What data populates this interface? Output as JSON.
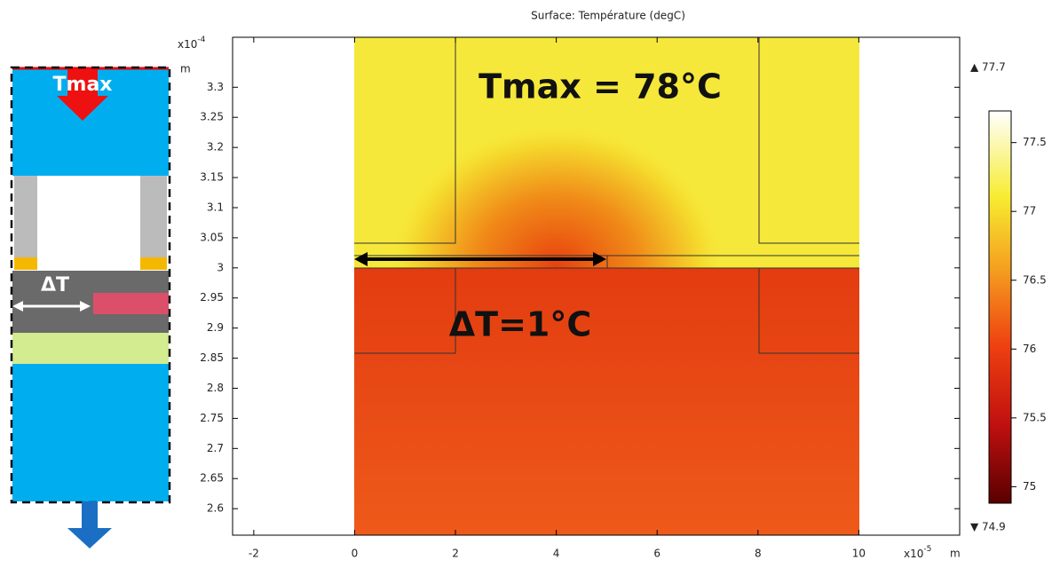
{
  "chart_data": {
    "type": "surface",
    "title": "Surface: Température (degC)",
    "x_unit": "m",
    "x_multiplier": "x10",
    "x_exponent": "-5",
    "y_unit": "m",
    "y_multiplier": "x10",
    "y_exponent": "-4",
    "xlim": [
      -2.42,
      12
    ],
    "xticks": [
      -2,
      0,
      2,
      4,
      6,
      8,
      10
    ],
    "ylim": [
      2.556,
      3.383
    ],
    "yticks": [
      2.6,
      2.65,
      2.7,
      2.75,
      2.8,
      2.85,
      2.9,
      2.95,
      3,
      3.05,
      3.1,
      3.15,
      3.2,
      3.25,
      3.3
    ],
    "clim": [
      74.88,
      77.73
    ],
    "cticks": [
      75,
      75.5,
      76,
      76.5,
      77,
      77.5
    ],
    "max": 77.7,
    "min": 74.9,
    "annotations": [
      "Tmax = 78°C",
      "ΔT=1°C"
    ],
    "schematic": {
      "top_label": "Tmax",
      "delta_label": "ΔT"
    }
  }
}
